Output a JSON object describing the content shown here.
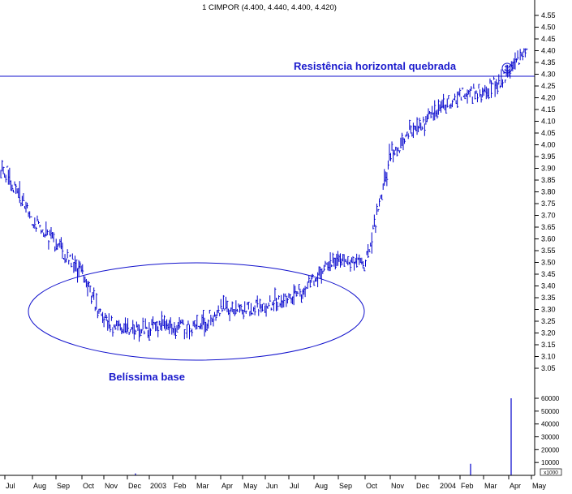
{
  "chart_data": {
    "type": "ohlc",
    "title": "1 CIMPOR (4.400, 4.440, 4.400, 4.420)",
    "price_axis": {
      "ticks": [
        "4.55",
        "4.50",
        "4.45",
        "4.40",
        "4.35",
        "4.30",
        "4.25",
        "4.20",
        "4.15",
        "4.10",
        "4.05",
        "4.00",
        "3.95",
        "3.90",
        "3.85",
        "3.80",
        "3.75",
        "3.70",
        "3.65",
        "3.60",
        "3.55",
        "3.50",
        "3.45",
        "3.40",
        "3.35",
        "3.30",
        "3.25",
        "3.20",
        "3.15",
        "3.10",
        "3.05"
      ],
      "ylim": [
        3.02,
        4.6
      ]
    },
    "volume_axis": {
      "ticks": [
        "60000",
        "50000",
        "40000",
        "30000",
        "20000",
        "10000"
      ],
      "unit_label": "x1000",
      "ylim": [
        0,
        70000
      ]
    },
    "x_axis": {
      "ticks": [
        "Jul",
        "Aug",
        "Sep",
        "Oct",
        "Nov",
        "Dec",
        "2003",
        "Feb",
        "Mar",
        "Apr",
        "May",
        "Jun",
        "Jul",
        "Aug",
        "Sep",
        "Oct",
        "Nov",
        "Dec",
        "2004",
        "Feb",
        "Mar",
        "Apr",
        "May"
      ]
    },
    "price_path": [
      [
        "Jul",
        3.9
      ],
      [
        "Aug",
        3.68
      ],
      [
        "Sep",
        3.58
      ],
      [
        "Oct",
        3.45
      ],
      [
        "Nov",
        3.25
      ],
      [
        "Dec",
        3.22
      ],
      [
        "2003",
        3.22
      ],
      [
        "Feb",
        3.23
      ],
      [
        "Mar",
        3.22
      ],
      [
        "Apr",
        3.3
      ],
      [
        "May",
        3.3
      ],
      [
        "Jun",
        3.32
      ],
      [
        "Jul",
        3.35
      ],
      [
        "Aug",
        3.42
      ],
      [
        "Sep",
        3.52
      ],
      [
        "Oct",
        3.48
      ],
      [
        "Nov",
        3.95
      ],
      [
        "Dec",
        4.08
      ],
      [
        "2004",
        4.15
      ],
      [
        "Feb",
        4.22
      ],
      [
        "Mar",
        4.22
      ],
      [
        "Apr",
        4.3
      ],
      [
        "May",
        4.42
      ]
    ],
    "resistance_level": 4.3,
    "volume_spikes": [
      {
        "date": "Jan 2003",
        "volume": 1500
      },
      {
        "date": "Feb 2004",
        "volume": 9000
      },
      {
        "date": "Apr 2004",
        "volume": 60000
      }
    ],
    "annotations": {
      "resistance": "Resistência horizontal quebrada",
      "base": "Belíssima base"
    },
    "colors": {
      "series": "#0000cc",
      "annotation": "#1a1acc",
      "axis": "#000000"
    },
    "grid": false
  }
}
